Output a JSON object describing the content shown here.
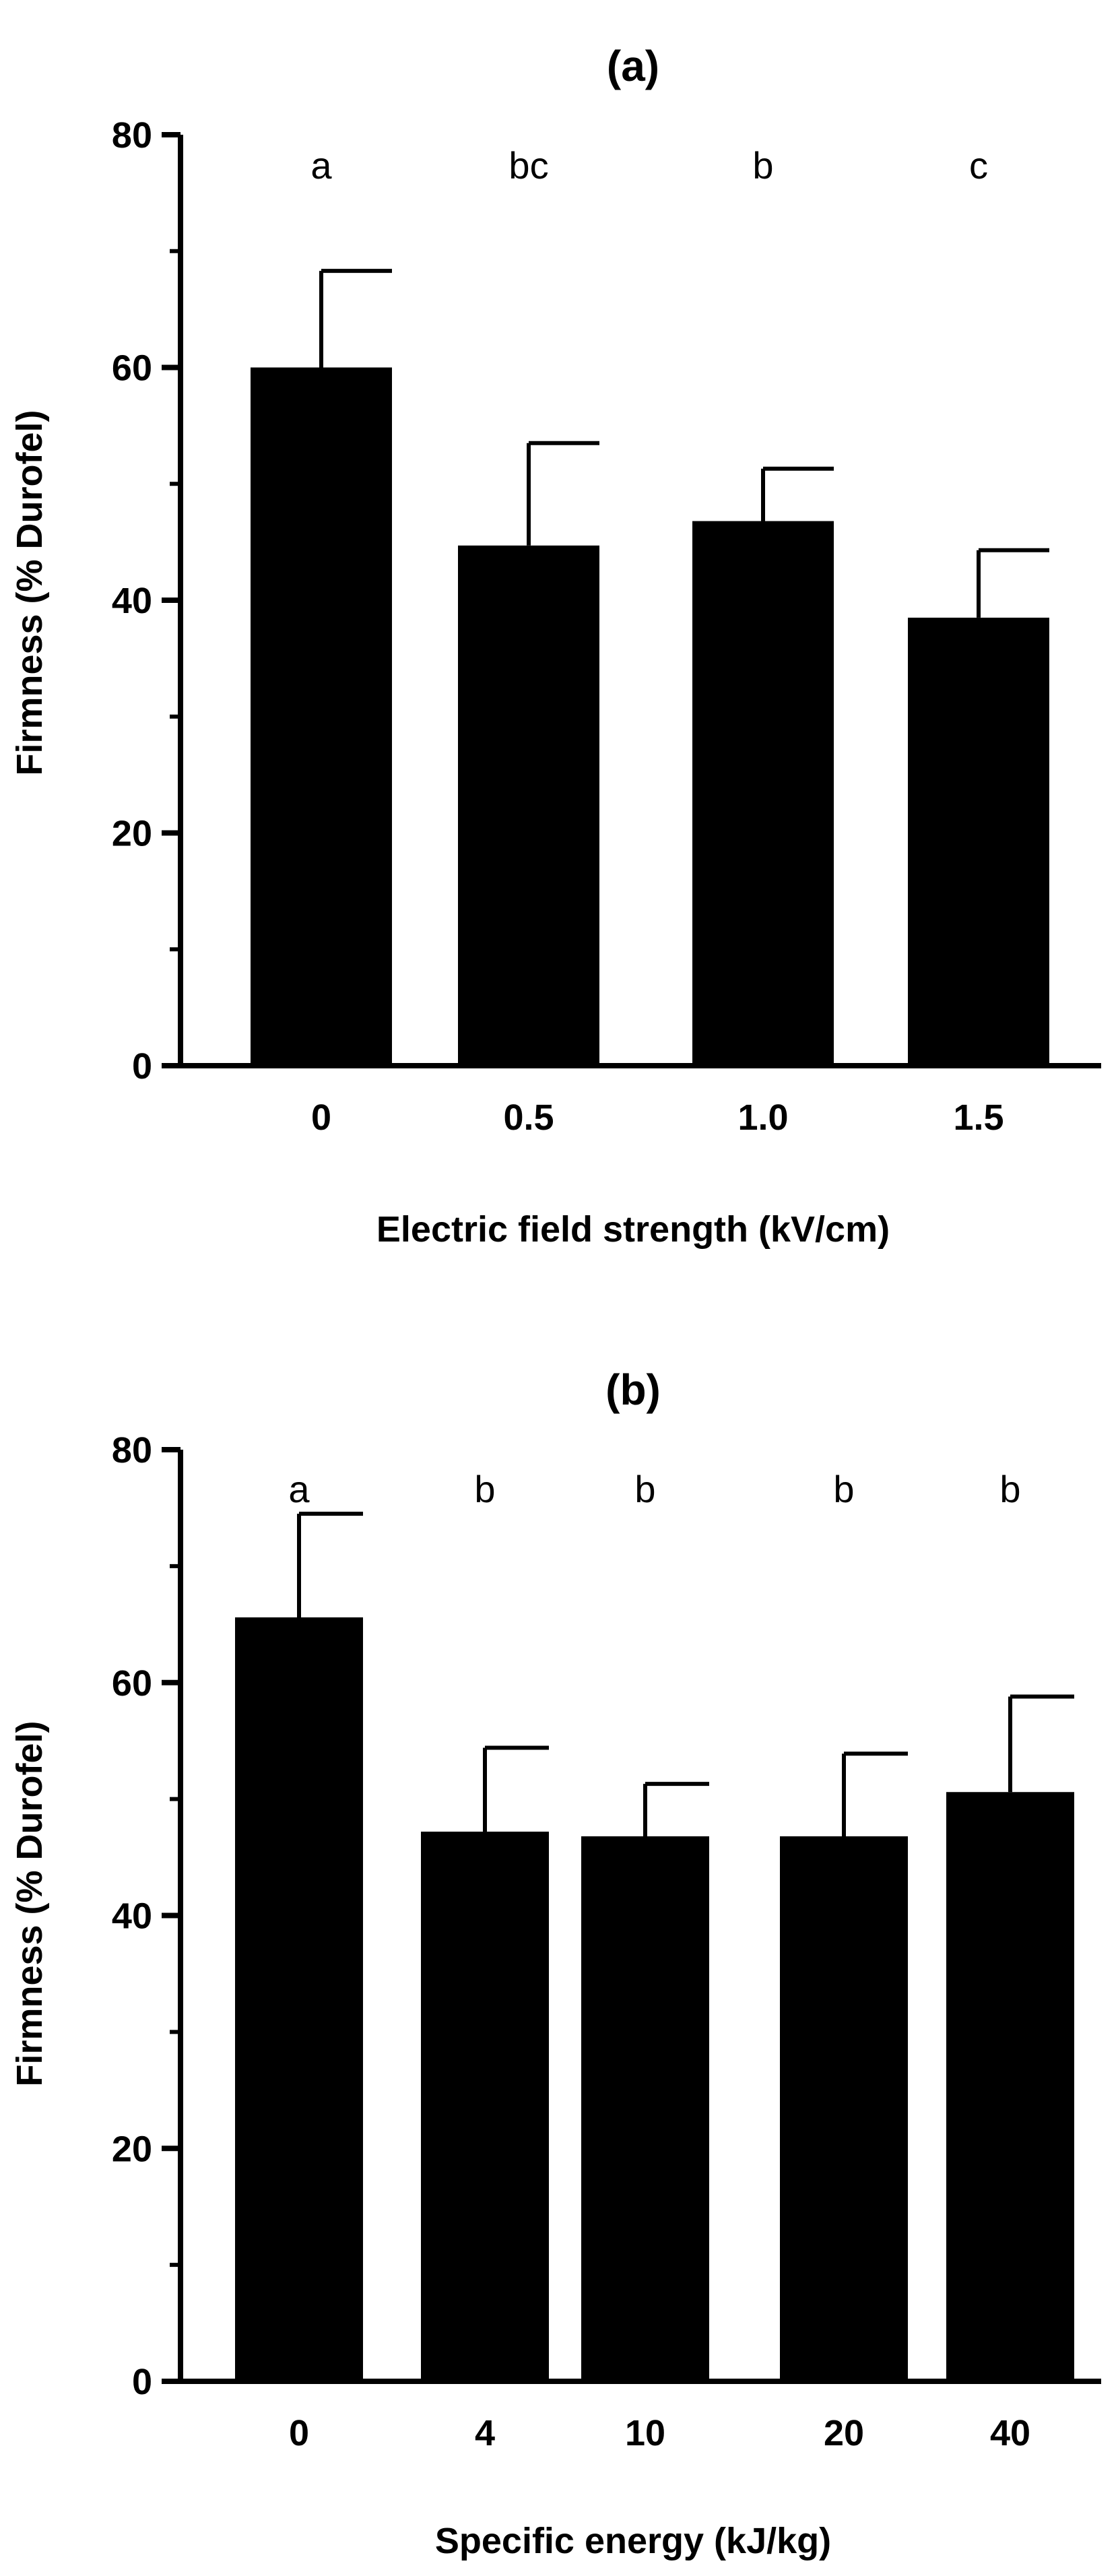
{
  "chart_data": [
    {
      "type": "bar",
      "title": "(a)",
      "xlabel": "Electric field strength (kV/cm)",
      "ylabel": "Firmness  (% Durofel)",
      "categories": [
        "0",
        "0.5",
        "1.0",
        "1.5"
      ],
      "values": [
        60,
        44.7,
        46.8,
        38.5
      ],
      "error_upper": [
        68.3,
        53.5,
        51.3,
        44.3
      ],
      "significance_letters": [
        "a",
        "bc",
        "b",
        "c"
      ],
      "ylim": [
        0,
        80
      ],
      "yticks": [
        "0",
        "20",
        "40",
        "60",
        "80"
      ],
      "grid": false,
      "legend": "none",
      "bar_color": "#000000"
    },
    {
      "type": "bar",
      "title": "(b)",
      "xlabel": "Specific energy (kJ/kg)",
      "ylabel": "Firmness (% Durofel)",
      "categories": [
        "0",
        "4",
        "10",
        "20",
        "40"
      ],
      "values": [
        65.6,
        47.2,
        46.8,
        46.8,
        50.6
      ],
      "error_upper": [
        74.5,
        54.4,
        51.3,
        53.9,
        58.8
      ],
      "significance_letters": [
        "a",
        "b",
        "b",
        "b",
        "b"
      ],
      "ylim": [
        0,
        80
      ],
      "yticks": [
        "0",
        "20",
        "40",
        "60",
        "80"
      ],
      "grid": false,
      "legend": "none",
      "bar_color": "#000000"
    }
  ]
}
